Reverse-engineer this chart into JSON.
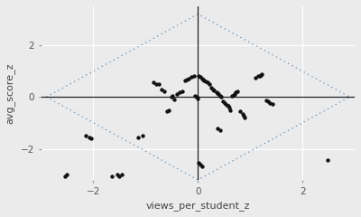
{
  "xlabel": "views_per_student_z",
  "ylabel": "avg_score_z",
  "xlim": [
    -3.0,
    3.0
  ],
  "ylim": [
    -3.2,
    3.5
  ],
  "xticks": [
    -2,
    0,
    2
  ],
  "yticks": [
    -2,
    0,
    2
  ],
  "background_color": "#ebebeb",
  "grid_color": "#ffffff",
  "dot_color": "#111111",
  "dot_size": 10,
  "diamond_color": "#5b8db8",
  "axline_color": "#222222",
  "diamond_x_scale": 2.9,
  "diamond_y_scale": 3.2,
  "scatter_x": [
    -2.55,
    -2.5,
    -1.65,
    -1.55,
    -1.5,
    -1.45,
    -1.15,
    -1.05,
    -0.85,
    -0.8,
    -0.75,
    -0.7,
    -0.65,
    -0.6,
    -0.55,
    -0.5,
    -0.48,
    -0.45,
    -0.4,
    -0.35,
    -0.3,
    -0.25,
    -0.22,
    -0.18,
    -0.12,
    -0.08,
    -0.05,
    -0.03,
    0.0,
    0.02,
    0.05,
    0.08,
    0.1,
    0.12,
    0.15,
    0.18,
    0.22,
    0.25,
    0.28,
    0.3,
    0.35,
    0.38,
    0.4,
    0.42,
    0.45,
    0.48,
    0.52,
    0.55,
    0.58,
    0.6,
    0.62,
    0.65,
    0.68,
    0.7,
    0.72,
    0.75,
    0.8,
    0.85,
    0.88,
    0.9,
    1.1,
    1.15,
    1.18,
    1.2,
    1.22,
    1.3,
    1.35,
    1.38,
    1.42,
    0.02,
    0.05,
    0.08,
    0.38,
    0.42,
    2.48,
    -2.15,
    -2.08,
    -2.05
  ],
  "scatter_y": [
    -3.05,
    -3.0,
    -3.05,
    -3.0,
    -3.05,
    -3.0,
    -1.55,
    -1.5,
    0.55,
    0.5,
    0.48,
    0.28,
    0.22,
    -0.55,
    -0.5,
    0.0,
    0.05,
    -0.08,
    0.12,
    0.18,
    0.22,
    0.65,
    0.68,
    0.72,
    0.78,
    0.82,
    0.05,
    0.0,
    -0.05,
    0.82,
    0.78,
    0.72,
    0.68,
    0.65,
    0.6,
    0.55,
    0.5,
    0.35,
    0.3,
    0.25,
    0.2,
    0.15,
    0.12,
    0.05,
    0.0,
    -0.18,
    -0.25,
    -0.3,
    -0.35,
    -0.42,
    -0.5,
    0.05,
    0.08,
    0.12,
    0.18,
    0.22,
    -0.55,
    -0.65,
    -0.72,
    -0.78,
    0.75,
    0.8,
    0.82,
    0.85,
    0.88,
    -0.12,
    -0.18,
    -0.22,
    -0.28,
    -2.55,
    -2.62,
    -2.68,
    -1.22,
    -1.28,
    -2.42,
    -1.48,
    -1.55,
    -1.6
  ]
}
